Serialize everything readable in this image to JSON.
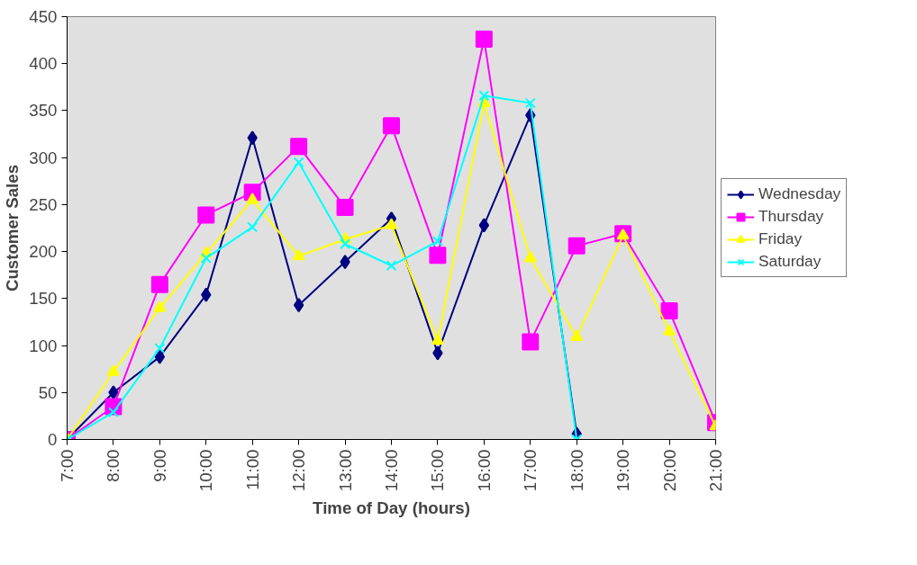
{
  "chart_data": {
    "type": "line",
    "xlabel": "Time of Day (hours)",
    "ylabel": "Customer Sales",
    "x": [
      7,
      8,
      9,
      10,
      11,
      12,
      13,
      14,
      15,
      16,
      17,
      18,
      19,
      20,
      21
    ],
    "xlim": [
      7,
      21
    ],
    "xticks": [
      {
        "value": 7,
        "label": "7:00"
      },
      {
        "value": 8,
        "label": "8:00"
      },
      {
        "value": 9,
        "label": "9:00"
      },
      {
        "value": 10,
        "label": "10:00"
      },
      {
        "value": 11,
        "label": "11:00"
      },
      {
        "value": 12,
        "label": "12:00"
      },
      {
        "value": 13,
        "label": "13:00"
      },
      {
        "value": 14,
        "label": "14:00"
      },
      {
        "value": 15,
        "label": "15:00"
      },
      {
        "value": 16,
        "label": "16:00"
      },
      {
        "value": 17,
        "label": "17:00"
      },
      {
        "value": 18,
        "label": "18:00"
      },
      {
        "value": 19,
        "label": "19:00"
      },
      {
        "value": 20,
        "label": "20:00"
      },
      {
        "value": 21,
        "label": "21:00"
      }
    ],
    "ylim": [
      0,
      450
    ],
    "yticks": [
      0,
      50,
      100,
      150,
      200,
      250,
      300,
      350,
      400,
      450
    ],
    "grid": false,
    "legend": "right",
    "line_style": "solid",
    "series": [
      {
        "name": "Wednesday",
        "color": "#000080",
        "marker": "diamond",
        "values": [
          0,
          50,
          88,
          154,
          321,
          143,
          189,
          235,
          92,
          228,
          345,
          6,
          null,
          null,
          null
        ]
      },
      {
        "name": "Thursday",
        "color": "#ff00ff",
        "marker": "square",
        "values": [
          0,
          35,
          165,
          239,
          263,
          312,
          247,
          334,
          196,
          426,
          104,
          206,
          219,
          137,
          18
        ]
      },
      {
        "name": "Friday",
        "color": "#ffff00",
        "marker": "triangle",
        "values": [
          0,
          72,
          140,
          198,
          255,
          195,
          213,
          228,
          105,
          358,
          193,
          109,
          217,
          115,
          14
        ]
      },
      {
        "name": "Saturday",
        "color": "#00ffff",
        "marker": "cross",
        "values": [
          0,
          29,
          97,
          193,
          226,
          295,
          208,
          185,
          211,
          366,
          358,
          0,
          null,
          null,
          null
        ]
      }
    ]
  }
}
